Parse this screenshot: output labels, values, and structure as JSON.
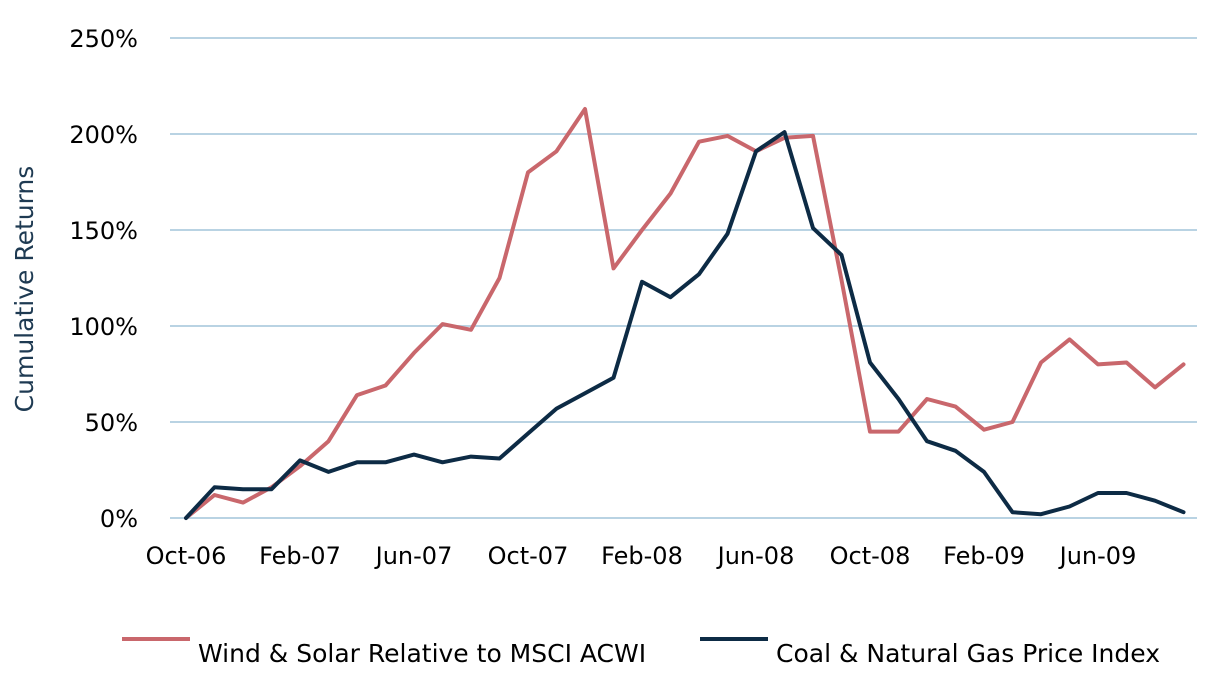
{
  "chart_data": {
    "type": "line",
    "title": "",
    "xlabel": "",
    "ylabel": "Cumulative Returns",
    "ylim": [
      0,
      250
    ],
    "y_ticks": [
      0,
      50,
      100,
      150,
      200,
      250
    ],
    "y_tick_labels": [
      "0%",
      "50%",
      "100%",
      "150%",
      "200%",
      "250%"
    ],
    "x_tick_labels": [
      "Oct-06",
      "Feb-07",
      "Jun-07",
      "Oct-07",
      "Feb-08",
      "Jun-08",
      "Oct-08",
      "Feb-09",
      "Jun-09"
    ],
    "x": [
      "Oct-06",
      "Nov-06",
      "Dec-06",
      "Jan-07",
      "Feb-07",
      "Mar-07",
      "Apr-07",
      "May-07",
      "Jun-07",
      "Jul-07",
      "Aug-07",
      "Sep-07",
      "Oct-07",
      "Nov-07",
      "Dec-07",
      "Jan-08",
      "Feb-08",
      "Mar-08",
      "Apr-08",
      "May-08",
      "Jun-08",
      "Jul-08",
      "Aug-08",
      "Sep-08",
      "Oct-08",
      "Nov-08",
      "Dec-08",
      "Jan-09",
      "Feb-09",
      "Mar-09",
      "Apr-09",
      "May-09",
      "Jun-09",
      "Jul-09",
      "Aug-09",
      "Sep-09"
    ],
    "grid": true,
    "legend_position": "bottom",
    "series": [
      {
        "name": "Wind & Solar Relative to MSCI ACWI",
        "color": "#c9676c",
        "values": [
          0,
          12,
          8,
          16,
          27,
          40,
          64,
          69,
          86,
          101,
          98,
          125,
          180,
          191,
          213,
          130,
          150,
          169,
          196,
          199,
          191,
          198,
          199,
          124,
          45,
          45,
          62,
          58,
          46,
          50,
          81,
          93,
          80,
          81,
          68,
          80
        ]
      },
      {
        "name": "Coal & Natural Gas Price Index",
        "color": "#0d2b45",
        "values": [
          0,
          16,
          15,
          15,
          30,
          24,
          29,
          29,
          33,
          29,
          32,
          31,
          44,
          57,
          65,
          73,
          123,
          115,
          127,
          148,
          191,
          201,
          151,
          137,
          81,
          62,
          40,
          35,
          24,
          3,
          2,
          6,
          13,
          13,
          9,
          3
        ]
      }
    ]
  }
}
